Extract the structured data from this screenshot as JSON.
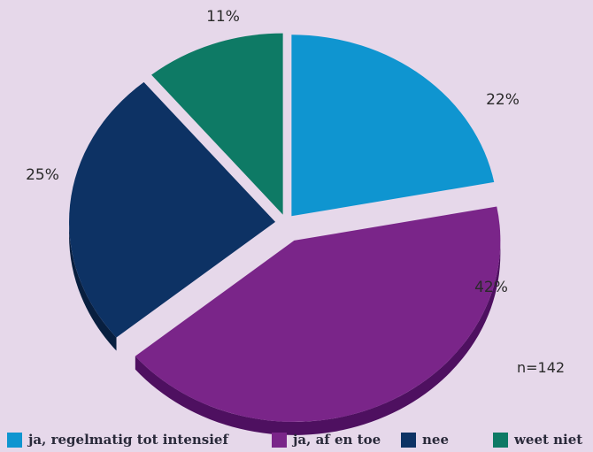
{
  "chart_data": {
    "type": "pie",
    "categories": [
      "ja, regelmatig tot intensief",
      "ja, af en toe",
      "nee",
      "weet niet"
    ],
    "values": [
      22,
      42,
      25,
      11
    ],
    "labels": [
      "22%",
      "42%",
      "25%",
      "11%"
    ],
    "colors": [
      "#0f95d0",
      "#7a2589",
      "#0d3264",
      "#0e7a65"
    ],
    "side_colors": [
      "#0a6c9a",
      "#4e1060",
      "#081f3f",
      "#08533f"
    ],
    "annotation": "n=142",
    "legend_position": "bottom",
    "background": "#e6d8ea"
  }
}
